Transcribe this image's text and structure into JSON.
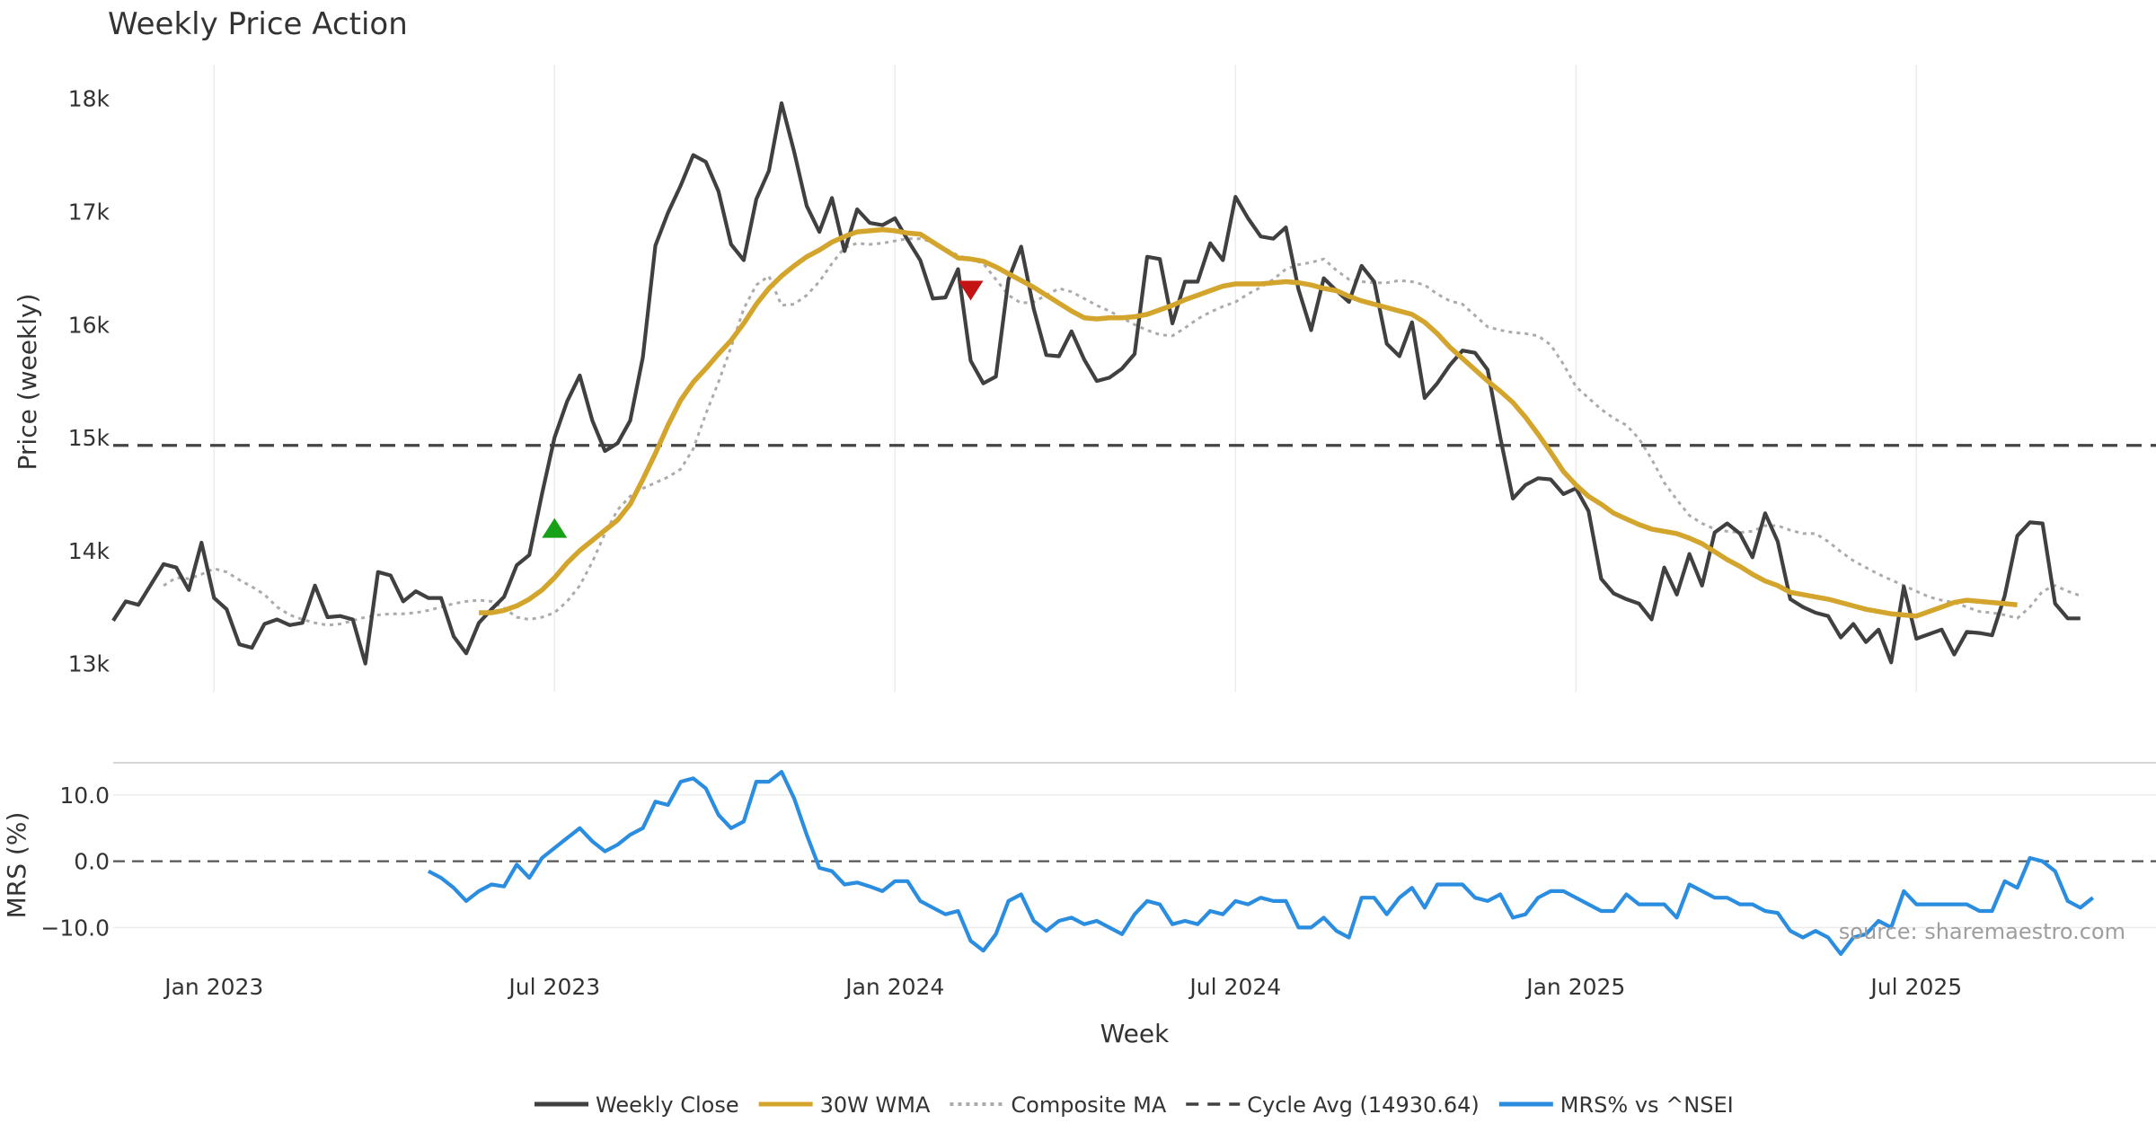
{
  "chart_data": {
    "type": "line",
    "title": "Weekly Price Action",
    "source_note": "source: sharemaestro.com",
    "xlabel": "Week",
    "x_ticks": [
      "Jan 2023",
      "Jul 2023",
      "Jan 2024",
      "Jul 2024",
      "Jan 2025",
      "Jul 2025"
    ],
    "x_tick_week_index": [
      8,
      35,
      62,
      89,
      116,
      143
    ],
    "x_range": [
      0,
      162
    ],
    "price_panel": {
      "ylabel": "Price (weekly)",
      "ylim": [
        12750,
        18300
      ],
      "y_ticks": [
        13000,
        14000,
        15000,
        16000,
        17000,
        18000
      ],
      "y_tick_labels": [
        "13k",
        "14k",
        "15k",
        "16k",
        "17k",
        "18k"
      ],
      "cycle_avg": 14930.64,
      "series": [
        {
          "name": "Weekly Close",
          "color": "#404040",
          "start": 0,
          "values": [
            13380,
            13550,
            13520,
            13700,
            13880,
            13850,
            13650,
            14070,
            13580,
            13480,
            13170,
            13140,
            13350,
            13390,
            13340,
            13360,
            13690,
            13410,
            13420,
            13390,
            13000,
            13810,
            13780,
            13550,
            13640,
            13580,
            13580,
            13240,
            13090,
            13360,
            13480,
            13590,
            13870,
            13960,
            14500,
            15000,
            15320,
            15550,
            15150,
            14880,
            14950,
            15150,
            15710,
            16700,
            16990,
            17230,
            17500,
            17440,
            17180,
            16710,
            16570,
            17110,
            17360,
            17960,
            17530,
            17050,
            16820,
            17120,
            16650,
            17020,
            16900,
            16880,
            16940,
            16750,
            16570,
            16230,
            16240,
            16490,
            15680,
            15480,
            15540,
            16400,
            16690,
            16140,
            15730,
            15720,
            15940,
            15690,
            15500,
            15530,
            15610,
            15740,
            16600,
            16580,
            16010,
            16380,
            16380,
            16720,
            16570,
            17130,
            16940,
            16780,
            16760,
            16860,
            16310,
            15950,
            16410,
            16300,
            16200,
            16520,
            16380,
            15830,
            15720,
            16020,
            15350,
            15480,
            15640,
            15770,
            15750,
            15600,
            15000,
            14460,
            14580,
            14640,
            14630,
            14500,
            14550,
            14350,
            13750,
            13620,
            13570,
            13530,
            13390,
            13850,
            13610,
            13970,
            13690,
            14160,
            14240,
            14150,
            13940,
            14330,
            14080,
            13570,
            13500,
            13450,
            13420,
            13230,
            13350,
            13190,
            13300,
            13010,
            13680,
            13220,
            13260,
            13300,
            13080,
            13280,
            13270,
            13250,
            13600,
            14130,
            14250,
            14240,
            13530,
            13400,
            13400
          ]
        },
        {
          "name": "30W WMA",
          "color": "#d4a52c",
          "start": 29,
          "values": [
            13450,
            13450,
            13470,
            13510,
            13570,
            13650,
            13760,
            13890,
            14000,
            14090,
            14180,
            14270,
            14410,
            14630,
            14860,
            15110,
            15330,
            15490,
            15610,
            15740,
            15860,
            16010,
            16180,
            16320,
            16430,
            16520,
            16600,
            16660,
            16730,
            16780,
            16820,
            16830,
            16840,
            16830,
            16810,
            16800,
            16730,
            16660,
            16590,
            16580,
            16560,
            16510,
            16450,
            16390,
            16330,
            16260,
            16190,
            16120,
            16060,
            16050,
            16060,
            16060,
            16070,
            16090,
            16130,
            16170,
            16220,
            16260,
            16300,
            16340,
            16360,
            16360,
            16360,
            16370,
            16380,
            16370,
            16350,
            16320,
            16300,
            16250,
            16210,
            16180,
            16150,
            16120,
            16090,
            16020,
            15920,
            15800,
            15700,
            15600,
            15500,
            15410,
            15310,
            15180,
            15030,
            14870,
            14700,
            14580,
            14480,
            14410,
            14330,
            14280,
            14230,
            14190,
            14170,
            14150,
            14110,
            14060,
            13990,
            13920,
            13860,
            13790,
            13730,
            13690,
            13630,
            13610,
            13590,
            13570,
            13540,
            13510,
            13480,
            13460,
            13440,
            13430,
            13420,
            13460,
            13500,
            13540,
            13560,
            13550,
            13540,
            13530,
            13520
          ]
        },
        {
          "name": "Composite MA",
          "color": "#ababab",
          "start": 4,
          "values": [
            13690,
            13760,
            13750,
            13790,
            13840,
            13810,
            13740,
            13680,
            13610,
            13500,
            13430,
            13390,
            13360,
            13340,
            13350,
            13380,
            13410,
            13430,
            13440,
            13440,
            13450,
            13470,
            13500,
            13530,
            13550,
            13560,
            13550,
            13490,
            13410,
            13390,
            13410,
            13450,
            13550,
            13690,
            13900,
            14150,
            14360,
            14480,
            14550,
            14600,
            14650,
            14720,
            14900,
            15210,
            15490,
            15800,
            16140,
            16350,
            16430,
            16170,
            16180,
            16260,
            16380,
            16540,
            16680,
            16720,
            16710,
            16720,
            16740,
            16760,
            16760,
            16730,
            16670,
            16610,
            16580,
            16540,
            16400,
            16260,
            16190,
            16200,
            16260,
            16320,
            16290,
            16230,
            16170,
            16120,
            16060,
            16000,
            15950,
            15910,
            15900,
            15970,
            16050,
            16110,
            16160,
            16200,
            16270,
            16330,
            16400,
            16490,
            16530,
            16550,
            16580,
            16480,
            16400,
            16380,
            16370,
            16370,
            16390,
            16380,
            16350,
            16270,
            16210,
            16180,
            16080,
            15980,
            15950,
            15930,
            15920,
            15900,
            15820,
            15650,
            15450,
            15350,
            15250,
            15170,
            15110,
            14990,
            14810,
            14600,
            14450,
            14310,
            14240,
            14190,
            14170,
            14160,
            14170,
            14220,
            14220,
            14180,
            14150,
            14150,
            14080,
            13990,
            13910,
            13850,
            13790,
            13740,
            13690,
            13640,
            13590,
            13560,
            13540,
            13500,
            13460,
            13450,
            13430,
            13400,
            13500,
            13640,
            13690,
            13640,
            13600
          ]
        }
      ],
      "markers": [
        {
          "type": "buy",
          "shape": "triangle-up",
          "color": "#17a117",
          "week": 35,
          "price": 14200
        },
        {
          "type": "sell",
          "shape": "triangle-down",
          "color": "#c41313",
          "week": 68,
          "price": 16300
        }
      ]
    },
    "mrs_panel": {
      "ylabel": "MRS (%)",
      "ylim": [
        -15.5,
        15
      ],
      "y_ticks": [
        10,
        0,
        -10
      ],
      "y_tick_labels": [
        "10.0",
        "0.0",
        "−10.0"
      ],
      "zero_line": 0,
      "series": [
        {
          "name": "MRS% vs ^NSEI",
          "color": "#2b8de0",
          "start": 25,
          "values": [
            -1.5,
            -2.5,
            -4.0,
            -6.0,
            -4.5,
            -3.5,
            -3.8,
            -0.5,
            -2.5,
            0.5,
            2.0,
            3.5,
            5.0,
            3.0,
            1.5,
            2.5,
            4.0,
            5.0,
            9.0,
            8.5,
            12.0,
            12.5,
            11.0,
            7.0,
            5.0,
            6.0,
            12.0,
            12.0,
            13.5,
            9.5,
            4.0,
            -1.0,
            -1.5,
            -3.5,
            -3.2,
            -3.8,
            -4.5,
            -3.0,
            -3.0,
            -6.0,
            -7.0,
            -8.0,
            -7.5,
            -12.0,
            -13.5,
            -11.0,
            -6.0,
            -5.0,
            -9.0,
            -10.5,
            -9.0,
            -8.5,
            -9.5,
            -9.0,
            -10.0,
            -11.0,
            -8.0,
            -6.0,
            -6.5,
            -9.5,
            -9.0,
            -9.5,
            -7.5,
            -8.0,
            -6.0,
            -6.5,
            -5.5,
            -6.0,
            -6.0,
            -10.0,
            -10.0,
            -8.5,
            -10.5,
            -11.5,
            -5.5,
            -5.5,
            -8.0,
            -5.5,
            -4.0,
            -7.0,
            -3.5,
            -3.5,
            -3.5,
            -5.5,
            -6.0,
            -5.0,
            -8.5,
            -8.0,
            -5.5,
            -4.5,
            -4.5,
            -5.5,
            -6.5,
            -7.5,
            -7.5,
            -5.0,
            -6.5,
            -6.5,
            -6.5,
            -8.5,
            -3.5,
            -4.5,
            -5.5,
            -5.5,
            -6.5,
            -6.5,
            -7.5,
            -7.8,
            -10.5,
            -11.5,
            -10.5,
            -11.5,
            -14.0,
            -11.5,
            -11.0,
            -9.0,
            -10.0,
            -4.5,
            -6.5,
            -6.5,
            -6.5,
            -6.5,
            -6.5,
            -7.5,
            -7.5,
            -3.0,
            -4.0,
            0.5,
            0.0,
            -1.5,
            -6.0,
            -7.0,
            -5.5
          ]
        }
      ]
    },
    "legend": [
      {
        "label": "Weekly Close",
        "color": "#404040",
        "style": "solid"
      },
      {
        "label": "30W WMA",
        "color": "#d4a52c",
        "style": "solid"
      },
      {
        "label": "Composite MA",
        "color": "#ababab",
        "style": "dotted"
      },
      {
        "label": "Cycle Avg (14930.64)",
        "color": "#404040",
        "style": "dashed"
      },
      {
        "label": "MRS% vs ^NSEI",
        "color": "#2b8de0",
        "style": "solid"
      }
    ]
  }
}
